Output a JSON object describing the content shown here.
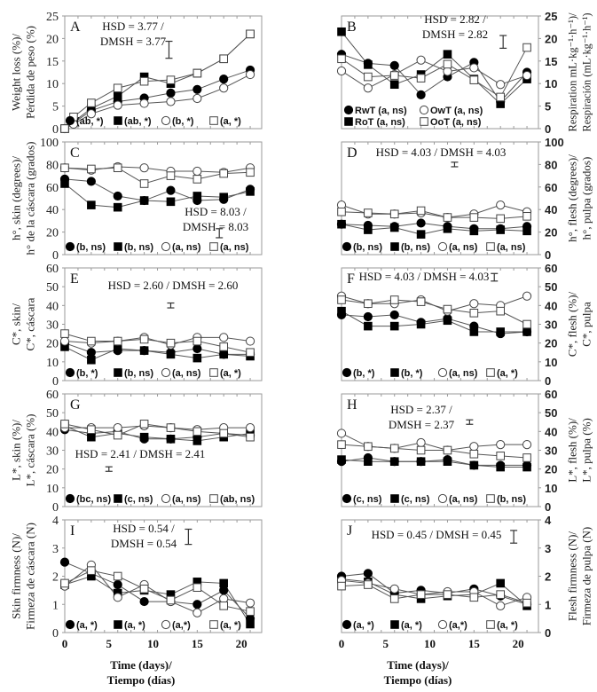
{
  "x_axis": {
    "title_lines": [
      "Time (days)/",
      "Tiempo (días)"
    ],
    "ticks": [
      0,
      5,
      10,
      15,
      20
    ]
  },
  "colors": {
    "line": "#555555",
    "marker_fill": "#000000",
    "open_fill": "#ffffff",
    "frame": "#9a9a9a"
  },
  "marker_styles": [
    "filled-circle",
    "filled-square",
    "open-circle",
    "open-square"
  ],
  "chart_data": [
    {
      "panel": "A",
      "type": "line",
      "ylabel_lines": [
        "Weight loss (%)/",
        "Pérdida de peso (%)"
      ],
      "ylim": [
        0,
        25
      ],
      "yticks": [
        0,
        5,
        10,
        15,
        20,
        25
      ],
      "hsd_lines": [
        "HSD = 3.77 /",
        "DMSH = 3.77"
      ],
      "hsd": 3.77,
      "x": [
        0,
        1,
        3,
        6,
        9,
        12,
        15,
        18,
        21
      ],
      "legend": [
        "(ab, *)",
        "(ab, *)",
        "(b, *)",
        "(a, *)"
      ],
      "series": [
        {
          "values": [
            0,
            1.3,
            4,
            6,
            6.8,
            7.9,
            8.7,
            11,
            13
          ]
        },
        {
          "values": [
            0,
            1.5,
            4.5,
            7.2,
            11.5,
            10,
            12.3,
            15.5,
            21
          ]
        },
        {
          "values": [
            0,
            1,
            3.3,
            5.2,
            5.6,
            6,
            6.7,
            9,
            12
          ]
        },
        {
          "values": [
            0,
            2.6,
            5.7,
            9,
            10.5,
            10.8,
            12.3,
            15.5,
            21
          ]
        }
      ]
    },
    {
      "panel": "B",
      "type": "line",
      "ylabel_lines": [
        "Respiration mL·kg⁻¹·h⁻¹)/",
        "Respiración (mL·kg⁻¹·h⁻¹)"
      ],
      "ylim": [
        0,
        25
      ],
      "yticks": [
        0,
        5,
        10,
        15,
        20,
        25
      ],
      "hsd_lines": [
        "HSD = 2.82 /",
        "DMSH = 2.82"
      ],
      "hsd": 2.82,
      "x": [
        0,
        3,
        6,
        9,
        12,
        15,
        18,
        21
      ],
      "legend": [
        "RwT (a, ns)",
        "RoT (a, ns)",
        "OwT (a, ns)",
        "OoT (a, ns)"
      ],
      "series": [
        {
          "name": "RwT",
          "values": [
            16.5,
            14.5,
            14,
            7.5,
            11.5,
            14.7,
            6,
            12.5
          ]
        },
        {
          "name": "RoT",
          "values": [
            21.5,
            14.2,
            9.8,
            12,
            16.5,
            11,
            5.5,
            11
          ]
        },
        {
          "name": "OwT",
          "values": [
            12.8,
            9,
            12,
            15.2,
            12.7,
            13.5,
            9.8,
            11.8
          ]
        },
        {
          "name": "OoT",
          "values": [
            15.5,
            11.5,
            11.8,
            11.2,
            14.3,
            10.8,
            7,
            18
          ]
        }
      ]
    },
    {
      "panel": "C",
      "type": "line",
      "ylabel_lines": [
        "h°, skin (degrees)/",
        "h° de la cáscara (grados)"
      ],
      "ylim": [
        0,
        100
      ],
      "yticks": [
        0,
        20,
        40,
        60,
        80,
        100
      ],
      "hsd_lines": [
        "HSD = 8.03 /",
        "DMSH = 8.03"
      ],
      "hsd": 8.03,
      "x": [
        0,
        3,
        6,
        9,
        12,
        15,
        18,
        21
      ],
      "legend": [
        "(b, ns)",
        "(b, ns)",
        "(a, ns)",
        "(a, ns)"
      ],
      "series": [
        {
          "values": [
            67,
            65,
            52,
            48,
            57,
            48,
            49,
            58
          ]
        },
        {
          "values": [
            63,
            44,
            42,
            48,
            47,
            52,
            51,
            56
          ]
        },
        {
          "values": [
            77,
            75,
            78,
            77,
            74,
            74,
            73,
            77
          ]
        },
        {
          "values": [
            77,
            76,
            77,
            63,
            70,
            67,
            72,
            73
          ]
        }
      ]
    },
    {
      "panel": "D",
      "type": "line",
      "ylabel_lines": [
        "h°, flesh (degrees)/",
        "h°, pulpa (grados)"
      ],
      "ylim": [
        0,
        100
      ],
      "yticks": [
        0,
        20,
        40,
        60,
        80,
        100
      ],
      "hsd_lines": [
        "HSD = 4.03 / DMSH = 4.03"
      ],
      "hsd": 4.03,
      "x": [
        0,
        3,
        6,
        9,
        12,
        15,
        18,
        21
      ],
      "legend": [
        "(b, ns)",
        "(b, ns)",
        "(a, ns)",
        "(a, ns)"
      ],
      "series": [
        {
          "values": [
            27,
            26,
            25,
            28,
            25,
            23,
            23,
            25
          ]
        },
        {
          "values": [
            27,
            22,
            24,
            18,
            23,
            21,
            22,
            21
          ]
        },
        {
          "values": [
            44,
            36,
            36,
            37,
            33,
            36,
            44,
            38
          ]
        },
        {
          "values": [
            38,
            37,
            36,
            39,
            33,
            33,
            32,
            34
          ]
        }
      ]
    },
    {
      "panel": "E",
      "type": "line",
      "ylabel_lines": [
        "C*, skin/",
        "C*, cáscara"
      ],
      "ylim": [
        0,
        60
      ],
      "yticks": [
        0,
        10,
        20,
        30,
        40,
        50,
        60
      ],
      "hsd_lines": [
        "HSD = 2.60 / DMSH = 2.60"
      ],
      "hsd": 2.6,
      "x": [
        0,
        3,
        6,
        9,
        12,
        15,
        18,
        21
      ],
      "legend": [
        "(b, *)",
        "(b, ns)",
        "(a, ns)",
        "(a, *)"
      ],
      "series": [
        {
          "values": [
            20,
            15,
            16,
            16,
            15,
            17,
            14,
            14
          ]
        },
        {
          "values": [
            18,
            11,
            17,
            16,
            14,
            12,
            14,
            13
          ]
        },
        {
          "values": [
            21,
            20,
            21,
            23,
            19,
            23,
            23,
            21
          ]
        },
        {
          "values": [
            25,
            21,
            21,
            22,
            20,
            21,
            18,
            15
          ]
        }
      ]
    },
    {
      "panel": "F",
      "type": "line",
      "ylabel_lines": [
        "C*, flesh (%)/",
        "C*, pulpa"
      ],
      "ylim": [
        0,
        60
      ],
      "yticks": [
        0,
        10,
        20,
        30,
        40,
        50,
        60
      ],
      "hsd_lines": [
        "HSD = 4.03 / DMSH = 4.03"
      ],
      "hsd": 4.03,
      "x": [
        0,
        3,
        6,
        9,
        12,
        15,
        18,
        21
      ],
      "legend": [
        "(b, *)",
        "(b, *)",
        "(a, ns)",
        "(a, *)"
      ],
      "series": [
        {
          "values": [
            35,
            34,
            35,
            31,
            33,
            29,
            25,
            26
          ]
        },
        {
          "values": [
            37,
            29,
            29,
            30,
            32,
            26,
            26,
            26
          ]
        },
        {
          "values": [
            45,
            41,
            41,
            43,
            37,
            41,
            40,
            45
          ]
        },
        {
          "values": [
            43,
            41,
            43,
            42,
            38,
            36,
            37,
            30
          ]
        }
      ]
    },
    {
      "panel": "G",
      "type": "line",
      "ylabel_lines": [
        "L*, skin (%)/",
        "L*, cáscara (%)"
      ],
      "ylim": [
        0,
        60
      ],
      "yticks": [
        0,
        10,
        20,
        30,
        40,
        50,
        60
      ],
      "hsd_lines": [
        "HSD = 2.41 / DMSH = 2.41"
      ],
      "hsd": 2.41,
      "x": [
        0,
        3,
        6,
        9,
        12,
        15,
        18,
        21
      ],
      "legend": [
        "(bc, ns)",
        "(c, ns)",
        "(a, ns)",
        "(ab, ns)"
      ],
      "series": [
        {
          "values": [
            41,
            39,
            40,
            36,
            36,
            37,
            39,
            38
          ]
        },
        {
          "values": [
            43,
            37,
            39,
            37,
            36,
            35,
            37,
            39
          ]
        },
        {
          "values": [
            42,
            42,
            42,
            43,
            42,
            41,
            42,
            42
          ]
        },
        {
          "values": [
            44,
            41,
            38,
            44,
            42,
            40,
            39,
            37
          ]
        }
      ]
    },
    {
      "panel": "H",
      "type": "line",
      "ylabel_lines": [
        "L*, flesh (%)/",
        "L*, pulpa (%)"
      ],
      "ylim": [
        0,
        60
      ],
      "yticks": [
        0,
        10,
        20,
        30,
        40,
        50,
        60
      ],
      "hsd_lines": [
        "HSD = 2.37 /",
        "DMSH = 2.37"
      ],
      "hsd": 2.37,
      "x": [
        0,
        3,
        6,
        9,
        12,
        15,
        18,
        21
      ],
      "legend": [
        "(c, ns)",
        "(c, ns)",
        "(a, ns)",
        "(b, ns)"
      ],
      "series": [
        {
          "values": [
            24,
            26,
            24,
            24,
            25,
            22,
            22,
            22
          ]
        },
        {
          "values": [
            25,
            24,
            24,
            24,
            24,
            22,
            21,
            21
          ]
        },
        {
          "values": [
            39,
            32,
            31,
            34,
            30,
            32,
            33,
            33
          ]
        },
        {
          "values": [
            33,
            32,
            31,
            30,
            30,
            28,
            27,
            26
          ]
        }
      ]
    },
    {
      "panel": "I",
      "type": "line",
      "ylabel_lines": [
        "Skin firmness (N)/",
        "Firmeza de cáscara (N)"
      ],
      "ylim": [
        0,
        4
      ],
      "yticks": [
        0,
        1,
        2,
        3,
        4
      ],
      "hsd_lines": [
        "HSD = 0.54 /",
        "DMSH = 0.54"
      ],
      "hsd": 0.54,
      "x": [
        0,
        3,
        6,
        9,
        12,
        15,
        18,
        21
      ],
      "legend": [
        "(a, *)",
        "(a, *)",
        "(a,*)",
        "(a, *)"
      ],
      "series": [
        {
          "values": [
            2.5,
            2.1,
            1.7,
            1.1,
            1.1,
            1.0,
            1.5,
            0.5
          ]
        },
        {
          "values": [
            1.7,
            2.0,
            1.4,
            1.5,
            1.35,
            1.8,
            1.75,
            0.3
          ]
        },
        {
          "values": [
            1.65,
            2.4,
            1.25,
            1.7,
            1.1,
            0.7,
            1.2,
            1.05
          ]
        },
        {
          "values": [
            1.75,
            2.2,
            2.0,
            1.55,
            1.15,
            1.6,
            0.95,
            0.75
          ]
        }
      ]
    },
    {
      "panel": "J",
      "type": "line",
      "ylabel_lines": [
        "Flesh firmness (N)/",
        "Firmeza de pulpa (N)"
      ],
      "ylim": [
        0,
        4
      ],
      "yticks": [
        0,
        1,
        2,
        3,
        4
      ],
      "hsd_lines": [
        "HSD = 0.45 / DMSH = 0.45"
      ],
      "hsd": 0.45,
      "x": [
        0,
        3,
        6,
        9,
        12,
        15,
        18,
        21
      ],
      "legend": [
        "(a, *)",
        "(a, *)",
        "(a,*)",
        "(a, *)"
      ],
      "series": [
        {
          "values": [
            2.0,
            2.1,
            1.4,
            1.5,
            1.4,
            1.55,
            1.3,
            1.0
          ]
        },
        {
          "values": [
            1.9,
            1.8,
            1.35,
            1.2,
            1.3,
            1.35,
            1.75,
            0.95
          ]
        },
        {
          "values": [
            1.85,
            1.75,
            1.55,
            1.35,
            1.45,
            1.45,
            0.95,
            1.25
          ]
        },
        {
          "values": [
            1.65,
            1.7,
            1.2,
            1.35,
            1.35,
            1.25,
            1.35,
            1.05
          ]
        }
      ]
    }
  ]
}
